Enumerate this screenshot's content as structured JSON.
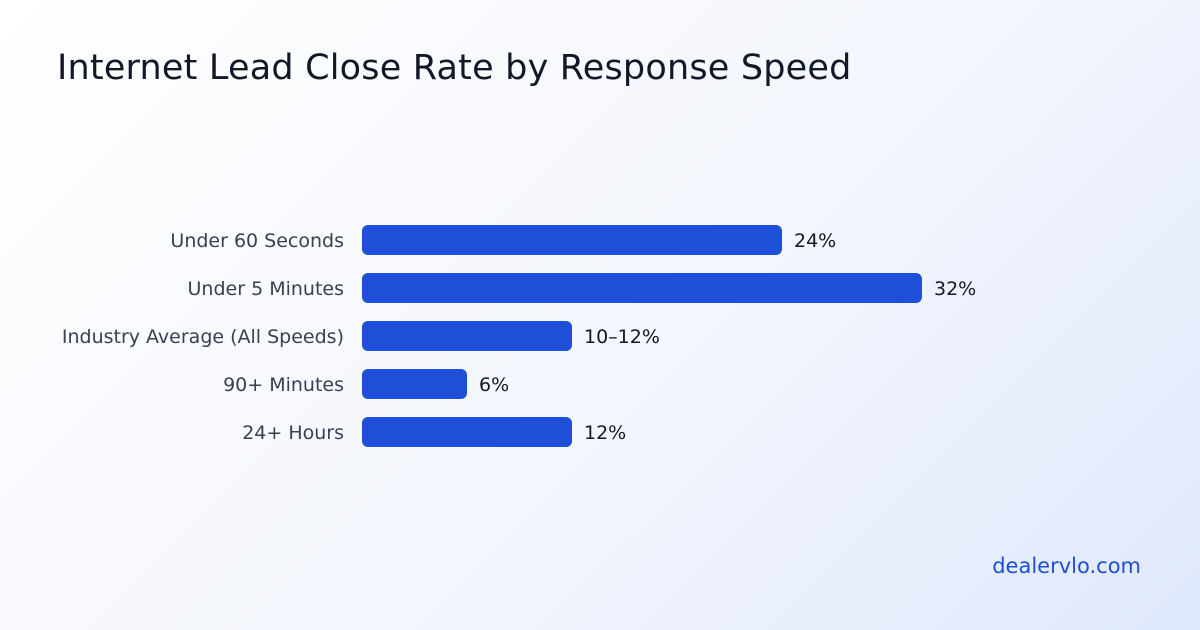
{
  "title": "Internet Lead Close Rate by Response Speed",
  "footer": "dealervlo.com",
  "colors": {
    "bar": "#1e4fd8",
    "text": "#111827",
    "label": "#374151",
    "footer": "#1d4fd7"
  },
  "chart_data": {
    "type": "bar",
    "orientation": "horizontal",
    "title": "Internet Lead Close Rate by Response Speed",
    "xlabel": "",
    "ylabel": "",
    "xlim": [
      0,
      32
    ],
    "grid": false,
    "categories": [
      "Under 60 Seconds",
      "Under 5 Minutes",
      "Industry Average (All Speeds)",
      "90+ Minutes",
      "24+ Hours"
    ],
    "values": [
      24,
      32,
      12,
      6,
      12
    ],
    "data_labels": [
      "24%",
      "32%",
      "10–12%",
      "6%",
      "12%"
    ]
  }
}
